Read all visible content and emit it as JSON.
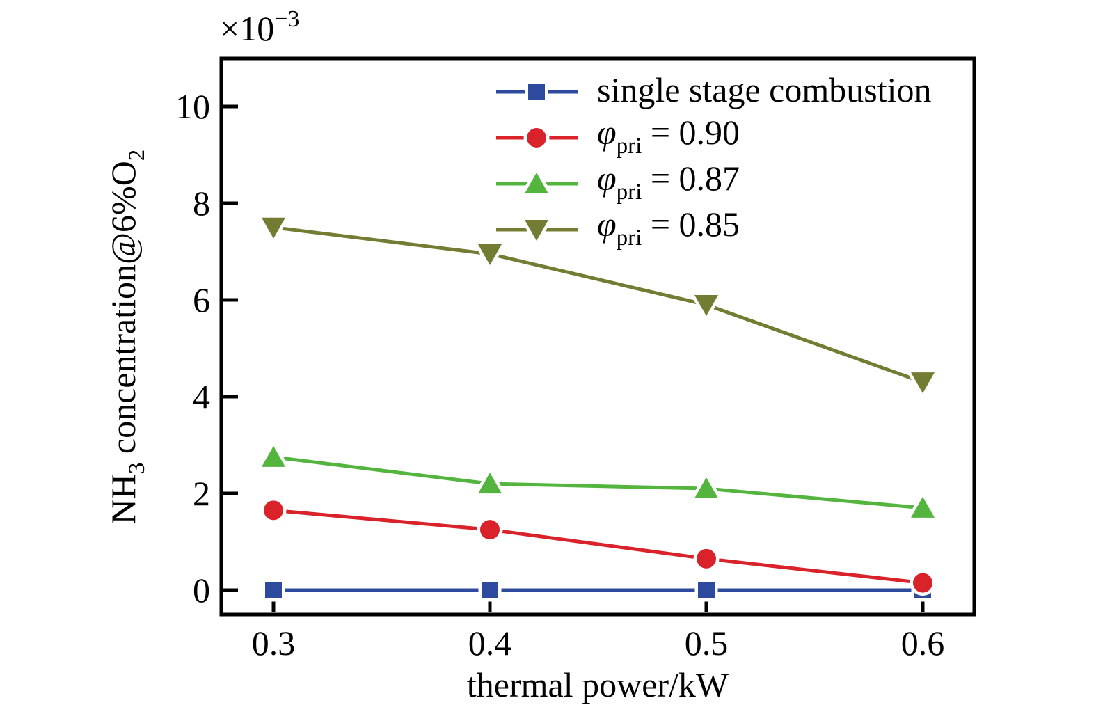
{
  "figure": {
    "background": "#ffffff",
    "scale_label_parts": [
      {
        "t": "×10"
      },
      {
        "t": "−3",
        "script": "sup"
      }
    ],
    "xlabel": "thermal power/kW",
    "ylabel_parts": [
      {
        "t": "NH"
      },
      {
        "t": "3",
        "script": "sub"
      },
      {
        "t": " concentration@6%O"
      },
      {
        "t": "2",
        "script": "sub"
      }
    ]
  },
  "axes": {
    "x_ticks": [
      "0.3",
      "0.4",
      "0.5",
      "0.6"
    ],
    "y_ticks": [
      "0",
      "2",
      "4",
      "6",
      "8",
      "10"
    ]
  },
  "legend": {
    "entries": [
      {
        "parts": [
          {
            "t": "single stage combustion"
          }
        ]
      },
      {
        "parts": [
          {
            "t": "φ",
            "italic": true
          },
          {
            "t": "pri",
            "script": "sub"
          },
          {
            "t": " = 0.90"
          }
        ]
      },
      {
        "parts": [
          {
            "t": "φ",
            "italic": true
          },
          {
            "t": "pri",
            "script": "sub"
          },
          {
            "t": " = 0.87"
          }
        ]
      },
      {
        "parts": [
          {
            "t": "φ",
            "italic": true
          },
          {
            "t": "pri",
            "script": "sub"
          },
          {
            "t": " = 0.85"
          }
        ]
      }
    ]
  },
  "chart_data": {
    "type": "line",
    "title": "",
    "xlabel": "thermal power/kW",
    "ylabel": "NH3 concentration@6%O2",
    "y_scale_note": "×10−3",
    "x": [
      0.3,
      0.4,
      0.5,
      0.6
    ],
    "x_tick_values": [
      0.3,
      0.4,
      0.5,
      0.6
    ],
    "y_tick_values": [
      0,
      2,
      4,
      6,
      8,
      10
    ],
    "xlim": [
      0.276,
      0.623
    ],
    "ylim": [
      -0.5,
      11.0
    ],
    "grid": false,
    "legend_position": "upper inside, center-right",
    "series": [
      {
        "name": "single stage combustion",
        "color": "#2e4a9e",
        "marker": "square",
        "values": [
          0,
          0,
          0,
          0
        ]
      },
      {
        "name": "φpri = 0.90",
        "color": "#d9222a",
        "marker": "circle",
        "values": [
          1.65,
          1.25,
          0.65,
          0.15
        ]
      },
      {
        "name": "φpri = 0.87",
        "color": "#53b43e",
        "marker": "triangle-up",
        "values": [
          2.75,
          2.2,
          2.1,
          1.7
        ]
      },
      {
        "name": "φpri = 0.85",
        "color": "#747c33",
        "marker": "triangle-down",
        "values": [
          7.5,
          6.95,
          5.9,
          4.3
        ]
      }
    ]
  }
}
